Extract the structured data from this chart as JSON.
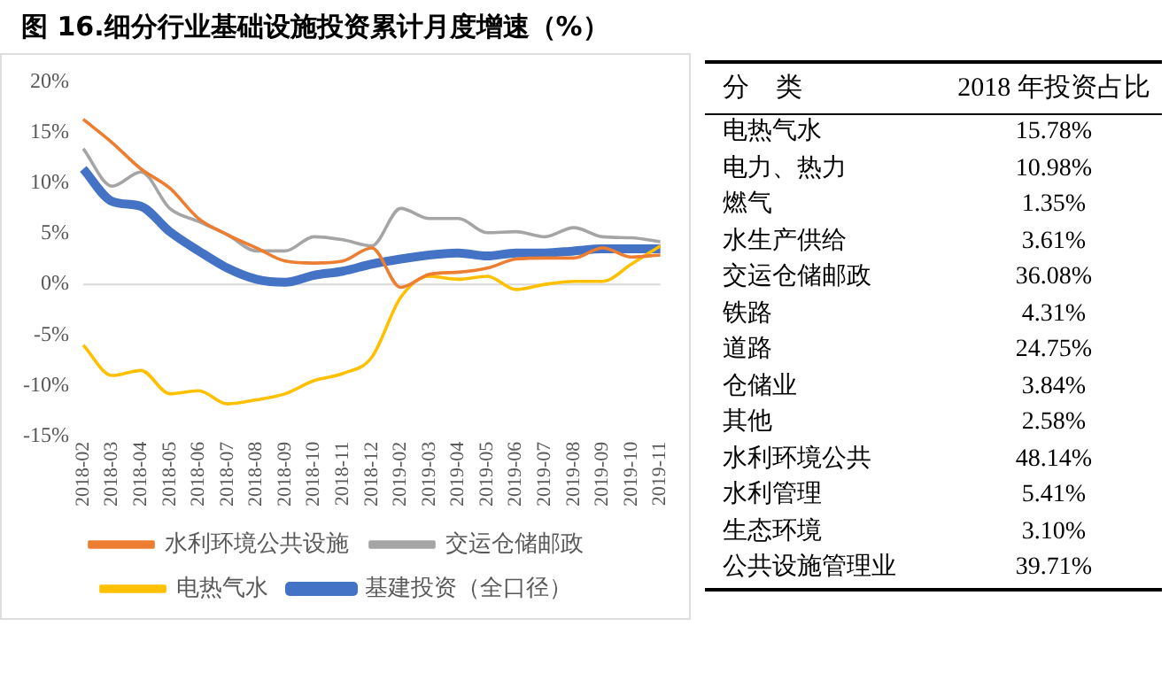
{
  "chart_data": [
    {
      "type": "line",
      "title": "图 16.细分行业基础设施投资累计月度增速（%）",
      "categories": [
        "2018-02",
        "2018-03",
        "2018-04",
        "2018-05",
        "2018-06",
        "2018-07",
        "2018-08",
        "2018-09",
        "2018-10",
        "2018-11",
        "2018-12",
        "2019-02",
        "2019-03",
        "2019-04",
        "2019-05",
        "2019-06",
        "2019-07",
        "2019-08",
        "2019-09",
        "2019-10",
        "2019-11"
      ],
      "series": [
        {
          "name": "基建投资（全口径）",
          "color": "#4472c4",
          "values": [
            11.4,
            8.2,
            7.7,
            5.2,
            3.3,
            1.6,
            0.5,
            0.2,
            0.9,
            1.3,
            2.0,
            2.5,
            2.9,
            3.1,
            2.8,
            3.1,
            3.1,
            3.3,
            3.5,
            3.5,
            3.5
          ]
        },
        {
          "name": "水利环境公共设施",
          "color": "#ed7d31",
          "values": [
            16.3,
            14.0,
            11.4,
            9.5,
            6.5,
            4.9,
            3.6,
            2.3,
            2.1,
            2.3,
            3.6,
            -0.3,
            1.0,
            1.2,
            1.6,
            2.5,
            2.6,
            2.6,
            3.6,
            2.7,
            2.9
          ]
        },
        {
          "name": "交运仓储邮政",
          "color": "#a5a5a5",
          "values": [
            13.4,
            9.7,
            11.1,
            7.5,
            6.2,
            4.9,
            3.3,
            3.3,
            4.7,
            4.4,
            3.8,
            7.5,
            6.5,
            6.5,
            5.1,
            5.2,
            4.7,
            5.6,
            4.7,
            4.6,
            4.2
          ]
        },
        {
          "name": "电热气水",
          "color": "#ffc000",
          "values": [
            -6.0,
            -9.0,
            -8.5,
            -10.8,
            -10.5,
            -11.8,
            -11.4,
            -10.8,
            -9.5,
            -8.8,
            -7.2,
            -1.3,
            0.8,
            0.5,
            0.8,
            -0.5,
            0.0,
            0.3,
            0.3,
            2.0,
            3.8
          ]
        }
      ],
      "ylim": [
        -15,
        20
      ],
      "yticks": [
        {
          "value": -15,
          "label": "-15%"
        },
        {
          "value": -10,
          "label": "-10%"
        },
        {
          "value": -5,
          "label": "-5%"
        },
        {
          "value": 0,
          "label": "0%"
        },
        {
          "value": 5,
          "label": "5%"
        },
        {
          "value": 10,
          "label": "10%"
        },
        {
          "value": 15,
          "label": "15%"
        },
        {
          "value": 20,
          "label": "20%"
        }
      ],
      "ref_lines": [
        {
          "axis": "y",
          "value": 0,
          "color": "#d9d9d9"
        }
      ],
      "grid": false,
      "legend": "bottom",
      "marker": "none",
      "line_style": "solid"
    },
    {
      "type": "other",
      "annotations": [
        "分　类",
        "2018 年投资占比",
        "电热气水",
        "15.78%",
        "电力、热力",
        "10.98%",
        "燃气",
        "1.35%",
        "水生产供给",
        "3.61%",
        "交运仓储邮政",
        "36.08%",
        "铁路",
        "4.31%",
        "道路",
        "24.75%",
        "仓储业",
        "3.84%",
        "其他",
        "2.58%",
        "水利环境公共",
        "48.14%",
        "水利管理",
        "5.41%",
        "生态环境",
        "3.10%",
        "公共设施管理业",
        "39.71%"
      ]
    }
  ]
}
